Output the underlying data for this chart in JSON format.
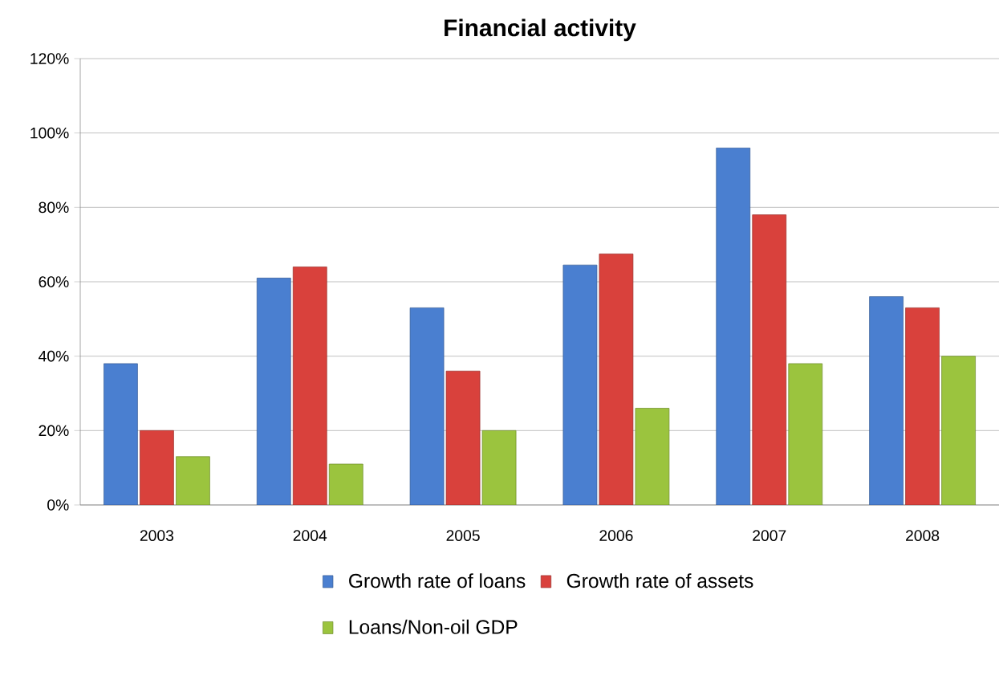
{
  "chart_data": {
    "type": "bar",
    "title": "Financial activity",
    "categories": [
      "2003",
      "2004",
      "2005",
      "2006",
      "2007",
      "2008"
    ],
    "series": [
      {
        "name": "Growth rate of loans",
        "color": "#4a7fd0",
        "values": [
          38,
          61,
          53,
          64.5,
          96,
          56
        ]
      },
      {
        "name": "Growth rate of assets",
        "color": "#d9413c",
        "values": [
          20,
          64,
          36,
          67.5,
          78,
          53
        ]
      },
      {
        "name": "Loans/Non-oil GDP",
        "color": "#9bc43e",
        "values": [
          13,
          11,
          20,
          26,
          38,
          40
        ]
      }
    ],
    "ylim": [
      0,
      120
    ],
    "yticks": [
      {
        "value": 0,
        "label": "0%"
      },
      {
        "value": 20,
        "label": "20%"
      },
      {
        "value": 40,
        "label": "40%"
      },
      {
        "value": 60,
        "label": "60%"
      },
      {
        "value": 80,
        "label": "80%"
      },
      {
        "value": 100,
        "label": "100%"
      },
      {
        "value": 120,
        "label": "120%"
      }
    ],
    "grid": "y",
    "legend": "bottom"
  }
}
